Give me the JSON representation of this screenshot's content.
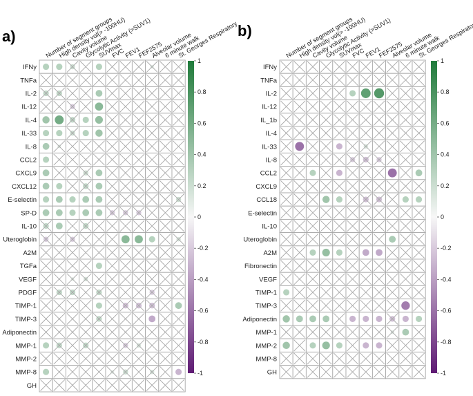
{
  "chart_data": [
    {
      "type": "heatmap",
      "panel_label": "a)",
      "columns": [
        "Number of segment groups",
        "High density vol(> -100HU)",
        "Cavity volume",
        "Glycolytic Activity (>SUV1)",
        "SUVmax",
        "FVC",
        "FEV1",
        "FEF2575",
        "Alveolar volume",
        "6 minute walk",
        "St. Georges Respiratory"
      ],
      "rows": [
        "IFNy",
        "TNFa",
        "IL-2",
        "IL-12",
        "IL-4",
        "IL-33",
        "IL-8",
        "CCL2",
        "CXCL9",
        "CXCL12",
        "E-selectin",
        "SP-D",
        "IL-10",
        "Uteroglobin",
        "A2M",
        "TGFa",
        "VEGF",
        "PDGF",
        "TIMP-1",
        "TIMP-3",
        "Adiponectin",
        "MMP-1",
        "MMP-2",
        "MMP-8",
        "GH"
      ],
      "values": [
        [
          0.3,
          0.3,
          0.2,
          0,
          0.3,
          0,
          0,
          0,
          0.1,
          0,
          0
        ],
        [
          0,
          0,
          0,
          0,
          0,
          0,
          0,
          0,
          0,
          0,
          0
        ],
        [
          0.25,
          0.25,
          0,
          0,
          0.35,
          0,
          0,
          0,
          0,
          0,
          0
        ],
        [
          0,
          0,
          -0.2,
          0,
          0.5,
          0,
          0,
          0,
          0,
          0,
          0
        ],
        [
          0.4,
          0.6,
          0.25,
          0.3,
          0.45,
          0,
          0,
          0,
          0,
          0,
          0
        ],
        [
          0.3,
          0.3,
          0.2,
          0.3,
          0.4,
          0,
          0,
          0,
          0,
          0,
          0
        ],
        [
          0.35,
          0.1,
          0,
          0,
          0,
          0,
          0,
          0,
          0,
          0,
          0
        ],
        [
          0.3,
          0,
          0,
          0,
          0,
          0,
          0,
          0,
          0,
          0,
          0
        ],
        [
          0.35,
          0,
          0,
          0.2,
          0.35,
          0,
          0,
          0,
          0,
          0,
          0
        ],
        [
          0.35,
          0.3,
          0,
          0.25,
          0.35,
          0,
          0,
          0,
          0,
          0,
          0
        ],
        [
          0.3,
          0.35,
          0.3,
          0.35,
          0.35,
          0,
          0,
          0,
          0,
          0,
          0.2
        ],
        [
          0.35,
          0.35,
          0.3,
          0.35,
          0.35,
          -0.2,
          -0.2,
          -0.2,
          0,
          0,
          0
        ],
        [
          0.25,
          0.35,
          0,
          0.25,
          0,
          0,
          0,
          0,
          0,
          0,
          0
        ],
        [
          -0.2,
          0,
          -0.2,
          0,
          0,
          0,
          0.5,
          0.5,
          0.3,
          0,
          0.15
        ],
        [
          0,
          0,
          0,
          0,
          0,
          0,
          0,
          0,
          0,
          0,
          0
        ],
        [
          0,
          0,
          0,
          0,
          0.3,
          0,
          0,
          0,
          0,
          0,
          0
        ],
        [
          0,
          0,
          0.1,
          0.15,
          0,
          0,
          0,
          0,
          0,
          0,
          0
        ],
        [
          0,
          0.25,
          0.25,
          0,
          0.25,
          0,
          0,
          0,
          -0.2,
          0,
          0
        ],
        [
          0,
          0,
          0,
          0,
          0.3,
          0,
          -0.25,
          -0.25,
          -0.25,
          0,
          0.35
        ],
        [
          0,
          0,
          0,
          0,
          0.25,
          0,
          0,
          0,
          -0.35,
          0,
          0
        ],
        [
          0,
          0,
          0,
          0,
          0,
          0,
          0,
          0,
          0,
          0,
          0
        ],
        [
          0.3,
          0.25,
          0,
          0.25,
          0,
          0,
          -0.2,
          0.15,
          0,
          0,
          0
        ],
        [
          0,
          0,
          0,
          0,
          0,
          0,
          0,
          0,
          0,
          0,
          0
        ],
        [
          0.3,
          0,
          0,
          0,
          0,
          0.1,
          0.2,
          0,
          0.15,
          0,
          -0.3
        ],
        [
          0,
          0,
          0,
          0,
          0,
          0,
          0,
          0,
          0,
          0,
          0
        ]
      ]
    },
    {
      "type": "heatmap",
      "panel_label": "b)",
      "columns": [
        "Number of segment groups",
        "High density vol(> -100HU)",
        "Cavity volume",
        "Glycolytic Activity (>SUV1)",
        "SUVmax",
        "FVC",
        "FEV1",
        "FEF2575",
        "Alveolar volume",
        "6 minute walk",
        "St. Georges Respiratory"
      ],
      "rows": [
        "IFNy",
        "TNFa",
        "IL-2",
        "IL-12",
        "IL_1b",
        "IL-4",
        "IL-33",
        "IL-8",
        "CCL2",
        "CXCL9",
        "CCL18",
        "E-selectin",
        "IL-10",
        "Uteroglobin",
        "A2M",
        "Fibronectin",
        "VEGF",
        "TIMP-1",
        "TIMP-3",
        "Adiponectin",
        "MMP-1",
        "MMP-2",
        "MMP-8",
        "GH"
      ],
      "values": [
        [
          0,
          0,
          0,
          0,
          0,
          0,
          0,
          0,
          0,
          0,
          0
        ],
        [
          0,
          0,
          0,
          0,
          0,
          0,
          0,
          0,
          0,
          0,
          0
        ],
        [
          0,
          0,
          0,
          0,
          0,
          0.3,
          0.7,
          0.75,
          0,
          0,
          0
        ],
        [
          0,
          0,
          0,
          0,
          0,
          0,
          0,
          0,
          0,
          0,
          0
        ],
        [
          0,
          0,
          0,
          0,
          0,
          0,
          0,
          0,
          0,
          0,
          0
        ],
        [
          0,
          0,
          0,
          0,
          0,
          0,
          0,
          0,
          0,
          0,
          0
        ],
        [
          0,
          -0.6,
          0,
          0,
          -0.3,
          0,
          0.15,
          0,
          0,
          0,
          0
        ],
        [
          0,
          0,
          0,
          0,
          0,
          -0.2,
          -0.25,
          -0.2,
          0,
          0,
          0
        ],
        [
          0,
          0,
          0.3,
          0,
          -0.3,
          0,
          0,
          0,
          -0.6,
          0,
          0.35
        ],
        [
          0,
          0,
          0,
          0,
          0,
          0,
          0,
          0,
          0,
          0,
          0
        ],
        [
          0,
          0,
          0,
          0.4,
          0.3,
          0,
          -0.25,
          -0.25,
          0,
          0.3,
          0.3
        ],
        [
          0,
          0,
          0,
          0,
          0,
          0,
          0,
          0,
          0,
          0,
          0
        ],
        [
          0,
          0,
          0,
          0,
          0,
          0,
          0,
          0,
          0,
          0,
          0
        ],
        [
          0,
          0,
          0,
          0,
          0,
          0,
          0,
          0,
          0.35,
          0,
          0
        ],
        [
          0,
          0,
          0.3,
          0.45,
          0.3,
          0,
          -0.35,
          -0.35,
          0,
          0,
          0
        ],
        [
          0,
          0,
          0,
          0,
          0,
          0,
          0,
          0,
          0,
          0,
          0
        ],
        [
          0,
          0,
          0,
          0,
          0,
          0,
          0,
          0,
          0,
          0,
          0
        ],
        [
          0.3,
          0,
          0,
          0,
          0,
          0,
          0,
          0,
          0,
          0,
          0
        ],
        [
          0,
          0,
          0,
          0,
          0,
          0,
          0,
          0,
          0,
          -0.55,
          0
        ],
        [
          0.4,
          0.35,
          0.35,
          0.35,
          0,
          -0.3,
          -0.3,
          -0.3,
          -0.25,
          -0.3,
          0.3
        ],
        [
          0,
          0,
          0,
          0,
          0,
          0,
          0,
          0,
          0.1,
          0.35,
          0
        ],
        [
          0.4,
          0,
          0.3,
          0.45,
          0.3,
          0,
          -0.3,
          -0.3,
          0,
          0,
          0
        ],
        [
          0,
          0,
          0,
          0,
          0,
          0,
          0,
          0,
          0,
          0,
          0
        ],
        [
          0,
          0,
          0,
          0,
          0,
          0,
          0,
          0,
          0,
          0,
          0
        ]
      ]
    }
  ],
  "colorbar": {
    "ticks": [
      "1",
      "0.8",
      "0.6",
      "0.4",
      "0.2",
      "0",
      "-0.2",
      "-0.4",
      "-0.6",
      "-0.8",
      "-1"
    ],
    "colors": {
      "positive": "#1f7a3a",
      "mid": "#f7f7f7",
      "negative": "#5e1a73"
    },
    "range": [
      -1,
      1
    ]
  }
}
